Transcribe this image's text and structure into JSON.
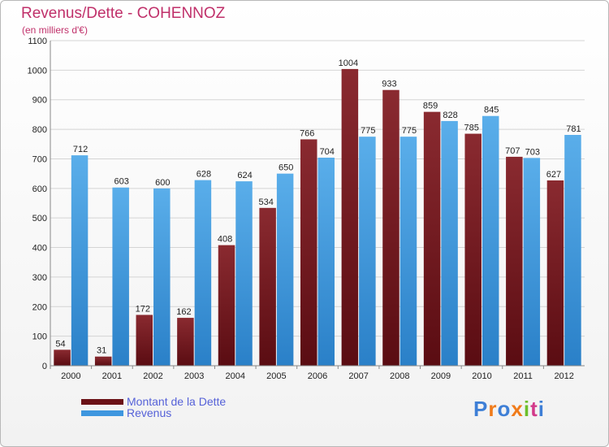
{
  "title": "Revenus/Dette - COHENNOZ",
  "subtitle": "(en milliers d'€)",
  "brand": "Proxiti",
  "colors": {
    "dette": "#7a1c22",
    "revenus": "#3e96df",
    "title": "#c0306a",
    "legend_text": "#5561d8"
  },
  "chart_data": {
    "type": "bar",
    "title": "Revenus/Dette - COHENNOZ",
    "ylabel": "(en milliers d'€)",
    "xlabel": "",
    "ylim": [
      0,
      1100
    ],
    "yticks": [
      0,
      100,
      200,
      300,
      400,
      500,
      600,
      700,
      800,
      900,
      1000,
      1100
    ],
    "grid": true,
    "legend_position": "bottom-left",
    "categories": [
      "2000",
      "2001",
      "2002",
      "2003",
      "2004",
      "2005",
      "2006",
      "2007",
      "2008",
      "2009",
      "2010",
      "2011",
      "2012"
    ],
    "series": [
      {
        "name": "Montant de la Dette",
        "color": "#7a1c22",
        "values": [
          54,
          31,
          172,
          162,
          408,
          534,
          766,
          1004,
          933,
          859,
          785,
          707,
          627
        ]
      },
      {
        "name": "Revenus",
        "color": "#3e96df",
        "values": [
          712,
          603,
          600,
          628,
          624,
          650,
          704,
          775,
          775,
          828,
          845,
          703,
          781
        ]
      }
    ]
  }
}
